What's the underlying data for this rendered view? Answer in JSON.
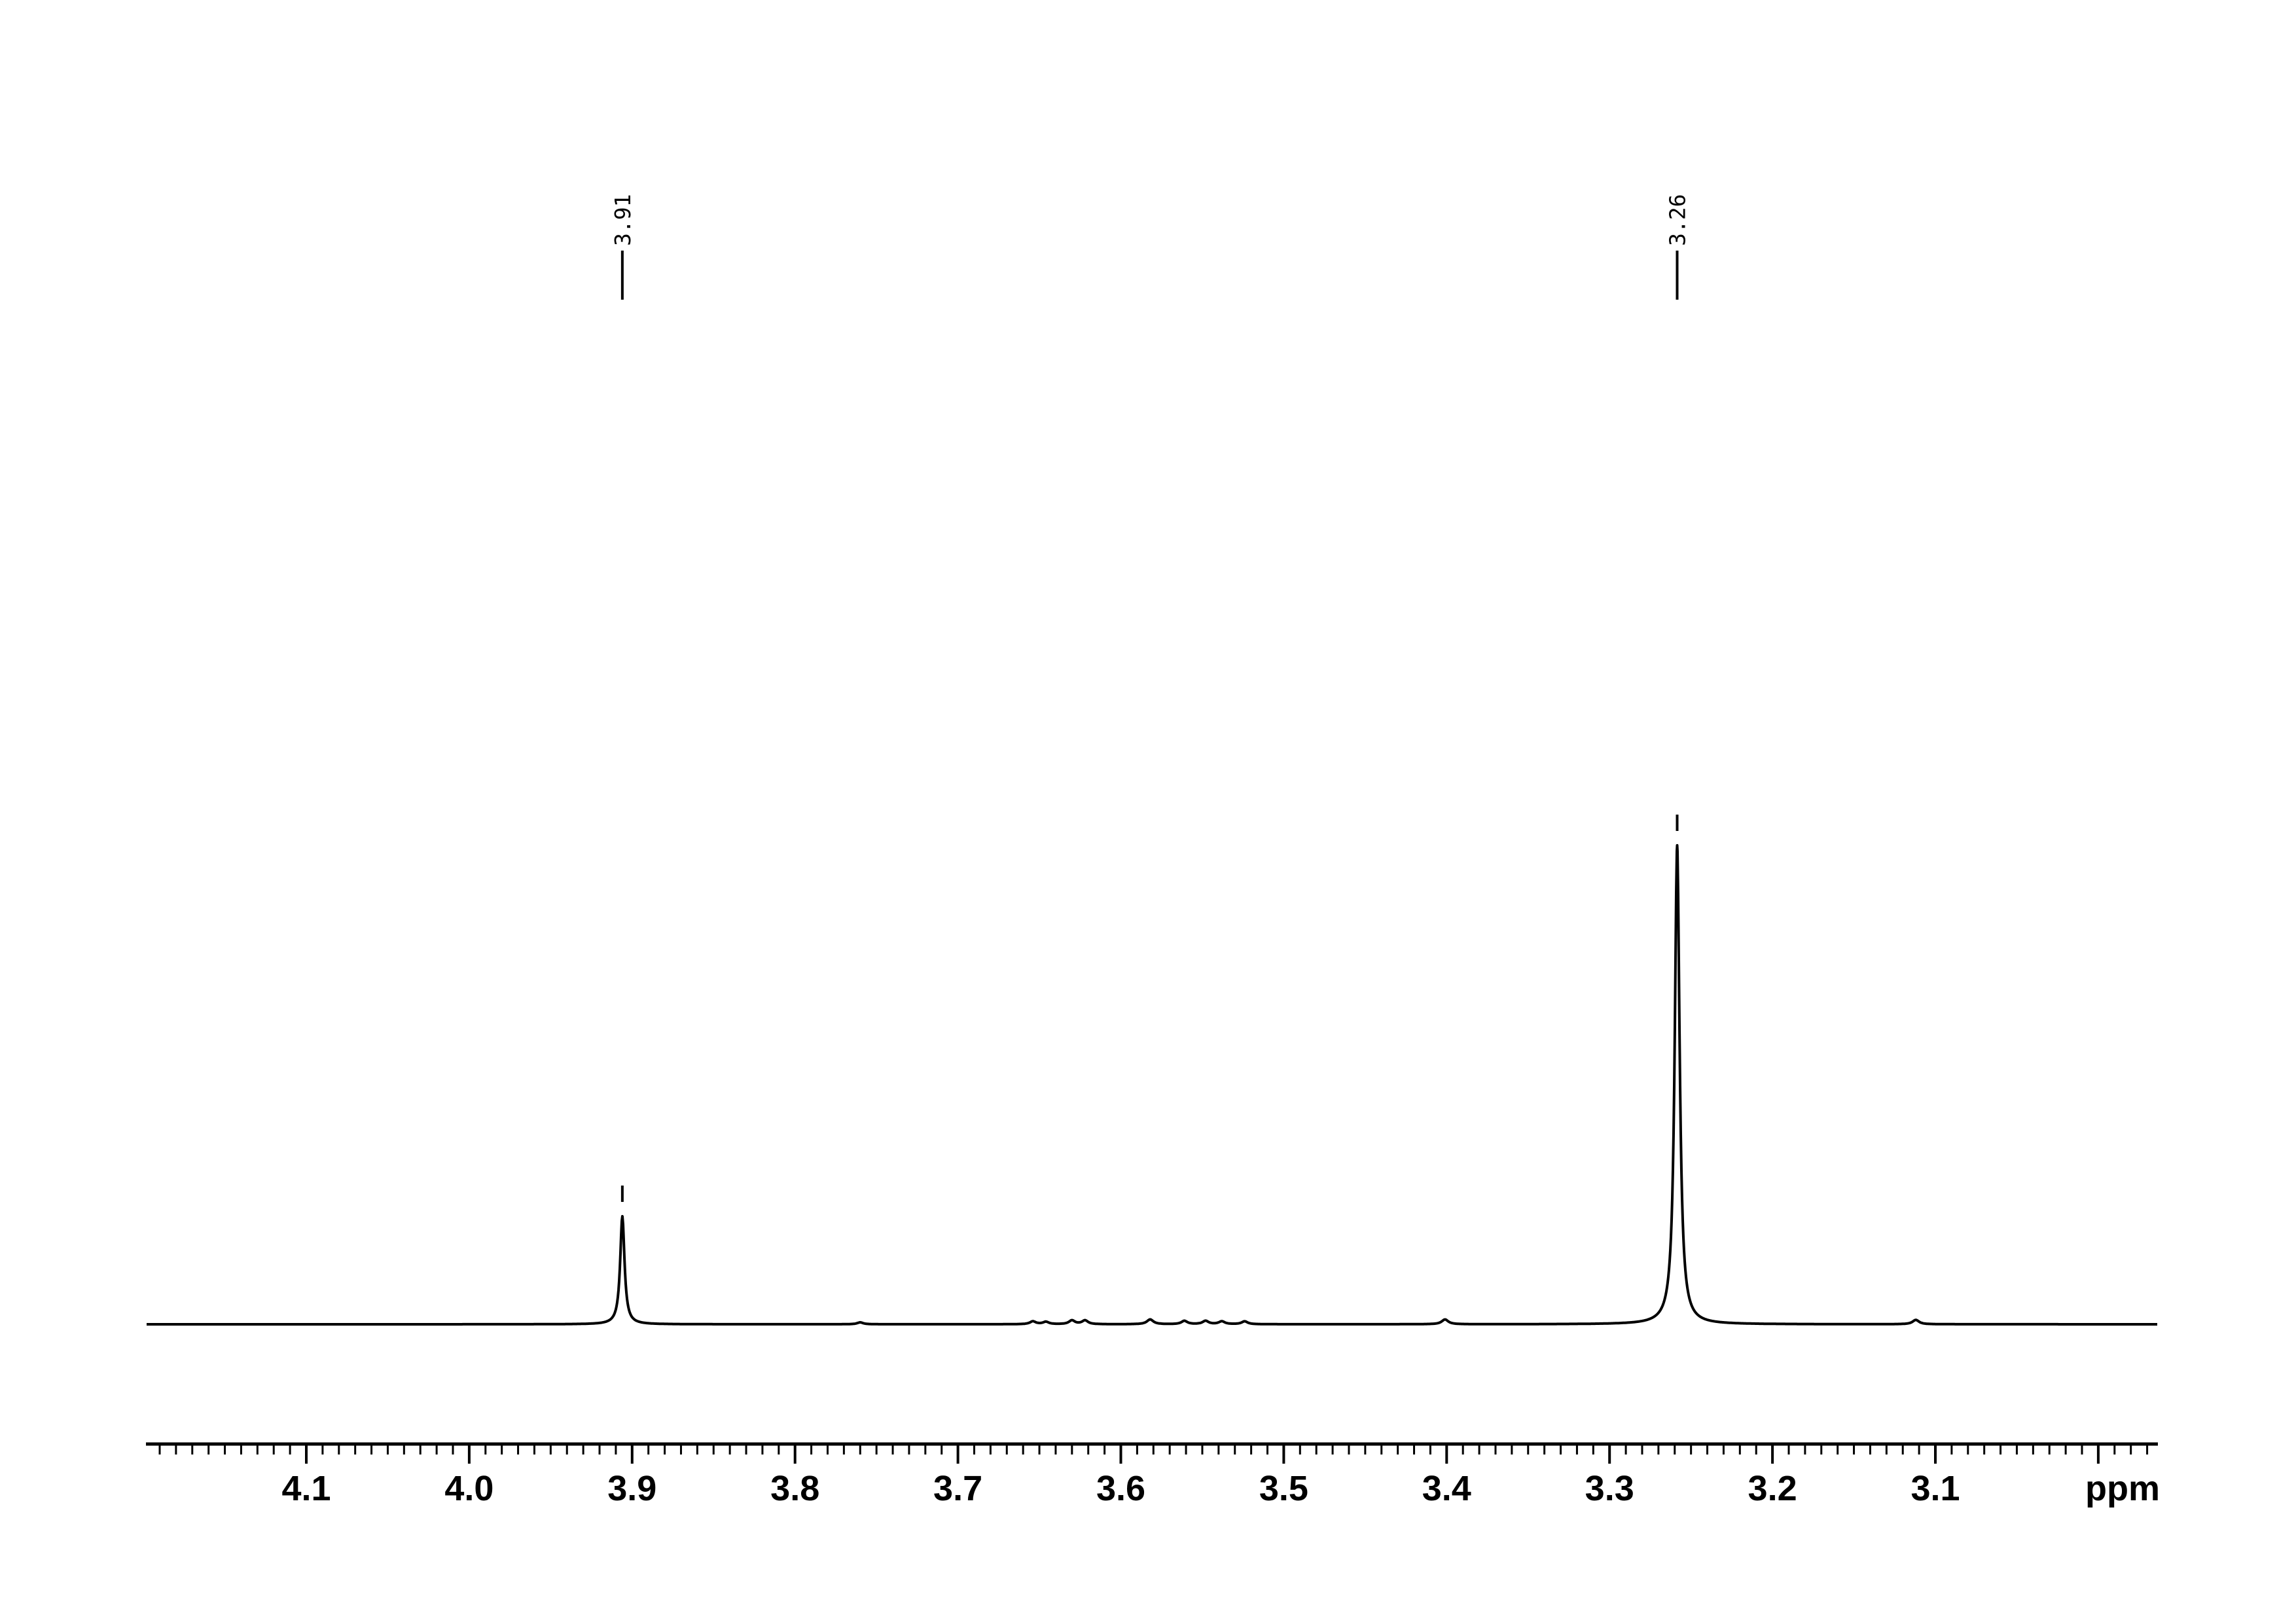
{
  "figure": {
    "background_color": "#ffffff",
    "line_color": "#000000"
  },
  "chart_data": {
    "type": "line",
    "kind": "1H NMR spectrum region",
    "title": "",
    "xlabel": "ppm",
    "ylabel": "",
    "x_axis": {
      "unit_label": "ppm",
      "direction": "reversed",
      "min_ppm": 2.963,
      "max_ppm": 4.198,
      "minor_tick_step": 0.01,
      "minor_tick_range": [
        4.19,
        2.97
      ],
      "major_ticks": [
        {
          "ppm": 4.1,
          "label": "4.1"
        },
        {
          "ppm": 4.0,
          "label": "4.0"
        },
        {
          "ppm": 3.9,
          "label": "3.9"
        },
        {
          "ppm": 3.8,
          "label": "3.8"
        },
        {
          "ppm": 3.7,
          "label": "3.7"
        },
        {
          "ppm": 3.6,
          "label": "3.6"
        },
        {
          "ppm": 3.5,
          "label": "3.5"
        },
        {
          "ppm": 3.4,
          "label": "3.4"
        },
        {
          "ppm": 3.3,
          "label": "3.3"
        },
        {
          "ppm": 3.2,
          "label": "3.2"
        },
        {
          "ppm": 3.1,
          "label": "3.1"
        },
        {
          "ppm": 3.0,
          "label": ""
        }
      ]
    },
    "peak_picks": [
      {
        "label": "3.91",
        "ppm": 3.906
      },
      {
        "label": "3.26",
        "ppm": 3.2585
      }
    ],
    "peaks": [
      {
        "ppm": 3.906,
        "rel_height": 0.2255,
        "hwhm_ppm": 0.0016,
        "picked": true
      },
      {
        "ppm": 3.2585,
        "rel_height": 1.0,
        "hwhm_ppm": 0.0018,
        "picked": true
      },
      {
        "ppm": 3.76,
        "rel_height": 0.004,
        "hwhm_ppm": 0.0022,
        "picked": false
      },
      {
        "ppm": 3.654,
        "rel_height": 0.006,
        "hwhm_ppm": 0.0022,
        "picked": false
      },
      {
        "ppm": 3.646,
        "rel_height": 0.005,
        "hwhm_ppm": 0.0022,
        "picked": false
      },
      {
        "ppm": 3.63,
        "rel_height": 0.008,
        "hwhm_ppm": 0.0022,
        "picked": false
      },
      {
        "ppm": 3.622,
        "rel_height": 0.008,
        "hwhm_ppm": 0.0022,
        "picked": false
      },
      {
        "ppm": 3.582,
        "rel_height": 0.01,
        "hwhm_ppm": 0.0024,
        "picked": false
      },
      {
        "ppm": 3.561,
        "rel_height": 0.007,
        "hwhm_ppm": 0.0022,
        "picked": false
      },
      {
        "ppm": 3.548,
        "rel_height": 0.007,
        "hwhm_ppm": 0.0022,
        "picked": false
      },
      {
        "ppm": 3.538,
        "rel_height": 0.006,
        "hwhm_ppm": 0.0022,
        "picked": false
      },
      {
        "ppm": 3.524,
        "rel_height": 0.006,
        "hwhm_ppm": 0.0022,
        "picked": false
      },
      {
        "ppm": 3.401,
        "rel_height": 0.01,
        "hwhm_ppm": 0.0024,
        "picked": false
      },
      {
        "ppm": 3.112,
        "rel_height": 0.009,
        "hwhm_ppm": 0.0024,
        "picked": false
      }
    ]
  }
}
